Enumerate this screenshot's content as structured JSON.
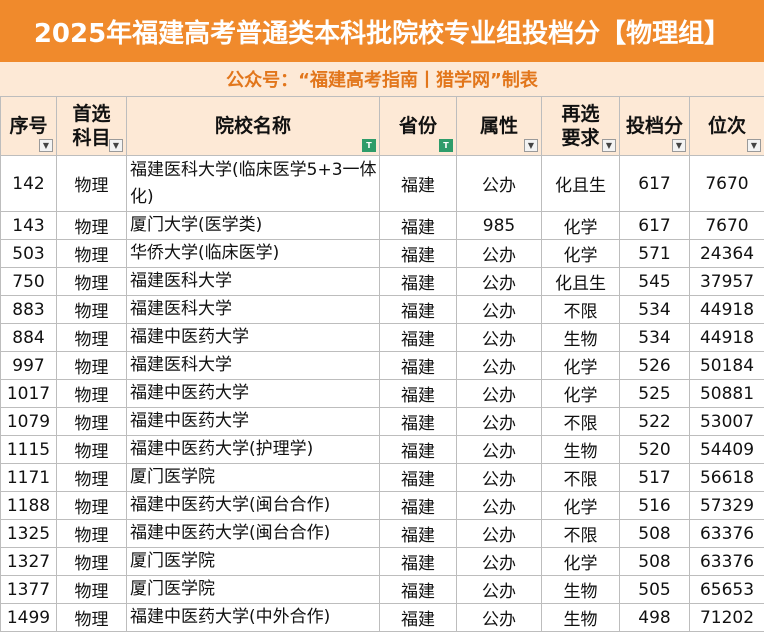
{
  "title": "2025年福建高考普通类本科批院校专业组投档分【物理组】",
  "subtitle": "公众号：“福建高考指南丨猎学网”制表",
  "columns": [
    {
      "line1": "序号",
      "line2": ""
    },
    {
      "line1": "首选",
      "line2": "科目"
    },
    {
      "line1": "院校名称",
      "line2": ""
    },
    {
      "line1": "省份",
      "line2": ""
    },
    {
      "line1": "属性",
      "line2": ""
    },
    {
      "line1": "再选",
      "line2": "要求"
    },
    {
      "line1": "投档分",
      "line2": ""
    },
    {
      "line1": "位次",
      "line2": ""
    }
  ],
  "rows": [
    [
      "142",
      "物理",
      "福建医科大学(临床医学5+3一体化)",
      "福建",
      "公办",
      "化且生",
      "617",
      "7670"
    ],
    [
      "143",
      "物理",
      "厦门大学(医学类)",
      "福建",
      "985",
      "化学",
      "617",
      "7670"
    ],
    [
      "503",
      "物理",
      "华侨大学(临床医学)",
      "福建",
      "公办",
      "化学",
      "571",
      "24364"
    ],
    [
      "750",
      "物理",
      "福建医科大学",
      "福建",
      "公办",
      "化且生",
      "545",
      "37957"
    ],
    [
      "883",
      "物理",
      "福建医科大学",
      "福建",
      "公办",
      "不限",
      "534",
      "44918"
    ],
    [
      "884",
      "物理",
      "福建中医药大学",
      "福建",
      "公办",
      "生物",
      "534",
      "44918"
    ],
    [
      "997",
      "物理",
      "福建医科大学",
      "福建",
      "公办",
      "化学",
      "526",
      "50184"
    ],
    [
      "1017",
      "物理",
      "福建中医药大学",
      "福建",
      "公办",
      "化学",
      "525",
      "50881"
    ],
    [
      "1079",
      "物理",
      "福建中医药大学",
      "福建",
      "公办",
      "不限",
      "522",
      "53007"
    ],
    [
      "1115",
      "物理",
      "福建中医药大学(护理学)",
      "福建",
      "公办",
      "生物",
      "520",
      "54409"
    ],
    [
      "1171",
      "物理",
      "厦门医学院",
      "福建",
      "公办",
      "不限",
      "517",
      "56618"
    ],
    [
      "1188",
      "物理",
      "福建中医药大学(闽台合作)",
      "福建",
      "公办",
      "化学",
      "516",
      "57329"
    ],
    [
      "1325",
      "物理",
      "福建中医药大学(闽台合作)",
      "福建",
      "公办",
      "不限",
      "508",
      "63376"
    ],
    [
      "1327",
      "物理",
      "厦门医学院",
      "福建",
      "公办",
      "化学",
      "508",
      "63376"
    ],
    [
      "1377",
      "物理",
      "厦门医学院",
      "福建",
      "公办",
      "生物",
      "505",
      "65653"
    ],
    [
      "1499",
      "物理",
      "福建中医药大学(中外合作)",
      "福建",
      "公办",
      "生物",
      "498",
      "71202"
    ]
  ],
  "colors": {
    "title_bg": "#f08a2c",
    "subtitle_bg": "#fde9d6",
    "subtitle_text": "#e2761b",
    "filter_active": "#2e9c6a"
  }
}
